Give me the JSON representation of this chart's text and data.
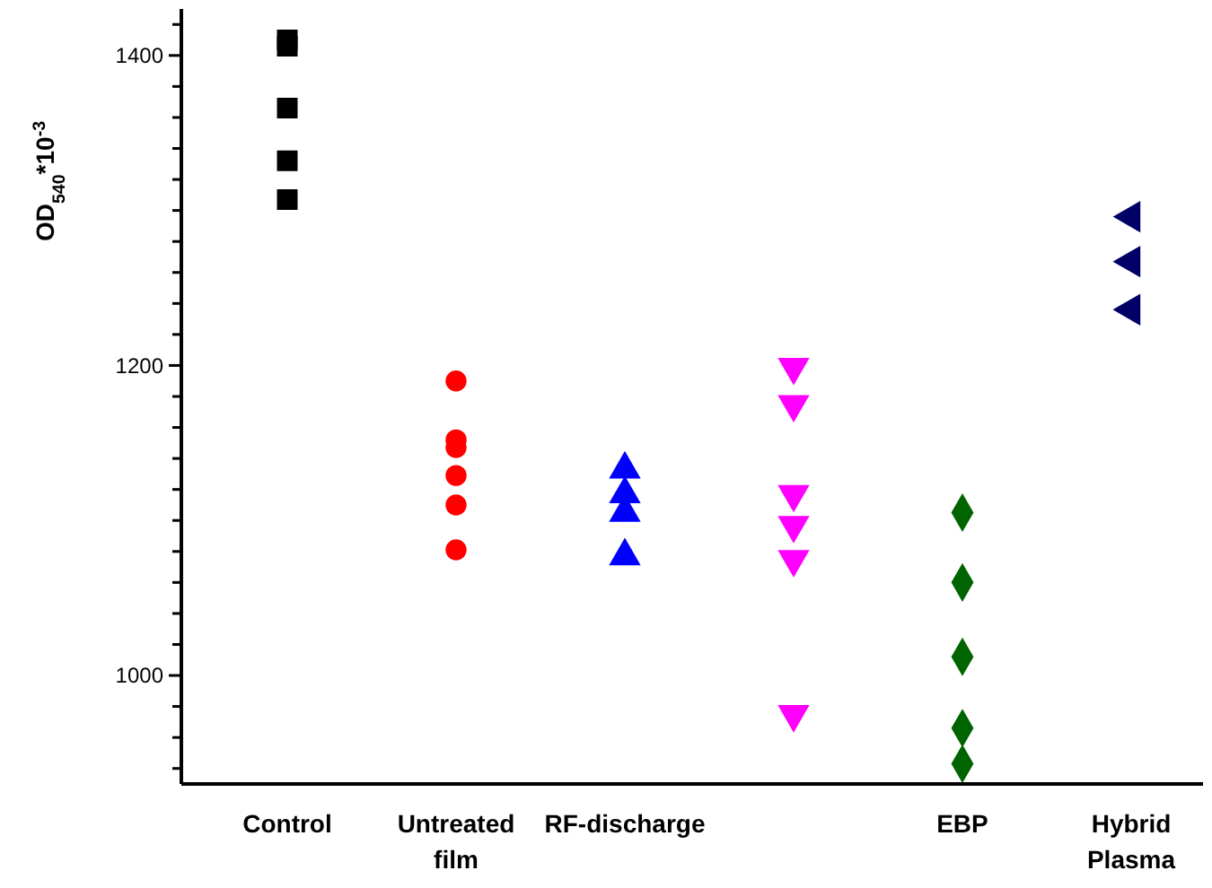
{
  "chart_data": {
    "type": "scatter",
    "ylabel": "OD$_{540}$*10$^{-3}$",
    "categories": [
      "Control",
      "Untreated film",
      "RF-discharge",
      null,
      "EBP",
      "Hybrid Plasma"
    ],
    "ylim": [
      930,
      1430
    ],
    "yticks": [
      {
        "value": 940,
        "label": null
      },
      {
        "value": 960,
        "label": null
      },
      {
        "value": 980,
        "label": null
      },
      1000,
      {
        "value": 1020,
        "label": null
      },
      {
        "value": 1040,
        "label": null
      },
      {
        "value": 1060,
        "label": null
      },
      {
        "value": 1080,
        "label": null
      },
      {
        "value": 1100,
        "label": null
      },
      {
        "value": 1120,
        "label": null
      },
      {
        "value": 1140,
        "label": null
      },
      {
        "value": 1160,
        "label": null
      },
      {
        "value": 1180,
        "label": null
      },
      1200,
      {
        "value": 1220,
        "label": null
      },
      {
        "value": 1240,
        "label": null
      },
      {
        "value": 1260,
        "label": null
      },
      {
        "value": 1280,
        "label": null
      },
      {
        "value": 1300,
        "label": null
      },
      {
        "value": 1320,
        "label": null
      },
      {
        "value": 1340,
        "label": null
      },
      {
        "value": 1360,
        "label": null
      },
      {
        "value": 1380,
        "label": null
      },
      1400,
      {
        "value": 1420,
        "label": null
      }
    ],
    "grid": false,
    "series": [
      {
        "colors": [
          "#000000",
          "#ff0000",
          "#0000ff",
          "#ff00ff",
          "#006400",
          "#000066"
        ],
        "marker": [
          "square",
          "circle",
          "triangle",
          "triangle-down",
          "diamond",
          "triangle-left"
        ],
        "values": [
          1410,
          1190,
          1133,
          1199,
          1105,
          1296
        ]
      },
      {
        "colors": [
          "#000000",
          "#ff0000",
          "#0000ff",
          "#ff00ff",
          "#006400",
          "#000066"
        ],
        "marker": [
          "square",
          "circle",
          "triangle",
          "triangle-down",
          "diamond",
          "triangle-left"
        ],
        "values": [
          1406,
          1152,
          1117,
          1175,
          1060,
          1267
        ]
      },
      {
        "colors": [
          "#000000",
          "#ff0000",
          "#0000ff",
          "#ff00ff",
          "#006400",
          "#000066"
        ],
        "marker": [
          "square",
          "circle",
          "triangle",
          "triangle-down",
          "diamond",
          "triangle-left"
        ],
        "values": [
          1366,
          1147,
          1105,
          1117,
          1012,
          1236
        ]
      },
      {
        "colors": [
          "#000000",
          "#ff0000",
          "#0000ff",
          "#ff00ff",
          "#006400",
          null
        ],
        "marker": [
          "square",
          "circle",
          "triangle",
          "triangle-down",
          "diamond",
          null
        ],
        "values": [
          1332,
          1129,
          1077,
          1097,
          966,
          null
        ]
      },
      {
        "colors": [
          "#000000",
          "#ff0000",
          null,
          "#ff00ff",
          "#006400",
          null
        ],
        "marker": [
          "square",
          "circle",
          null,
          "triangle-down",
          "diamond",
          null
        ],
        "values": [
          1307,
          1110,
          null,
          1075,
          943,
          null
        ]
      },
      {
        "colors": [
          null,
          "#ff0000",
          null,
          "#ff00ff",
          null,
          null
        ],
        "marker": [
          null,
          "circle",
          null,
          "triangle-down",
          null,
          null
        ],
        "values": [
          null,
          1081,
          null,
          975,
          null,
          null
        ]
      }
    ]
  }
}
